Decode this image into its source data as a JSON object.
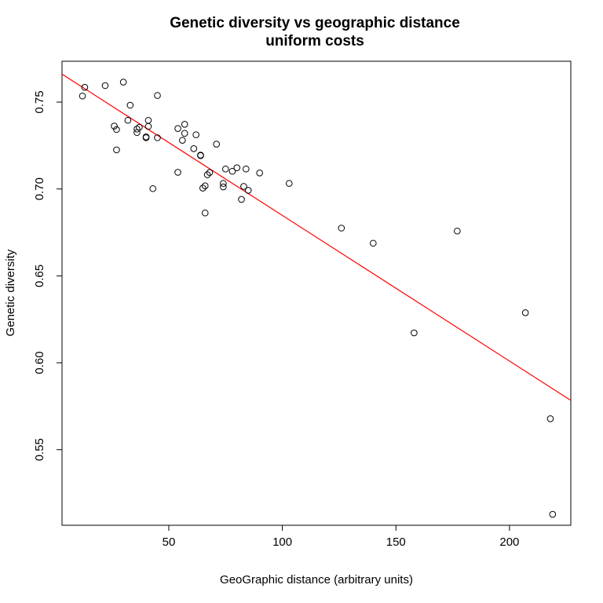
{
  "chart_data": {
    "type": "scatter",
    "title": "Genetic diversity vs geographic distance",
    "subtitle": "uniform costs",
    "xlabel": "GeoGraphic distance (arbitrary units)",
    "ylabel": "Genetic diversity",
    "xlim": [
      3,
      227
    ],
    "ylim": [
      0.5065,
      0.7735
    ],
    "x_ticks": [
      50,
      100,
      150,
      200
    ],
    "y_ticks": [
      0.55,
      0.6,
      0.65,
      0.7,
      0.75
    ],
    "x_tick_labels": [
      "50",
      "100",
      "150",
      "200"
    ],
    "y_tick_labels": [
      "0.55",
      "0.60",
      "0.65",
      "0.70",
      "0.75"
    ],
    "grid": false,
    "legend": "none",
    "colors": {
      "points": "#000000",
      "fit_line": "#ff0000"
    },
    "fit_line": {
      "intercept": 0.7686,
      "slope": -0.000838
    },
    "points": [
      {
        "x": 12,
        "y": 0.7535
      },
      {
        "x": 13,
        "y": 0.7585
      },
      {
        "x": 22,
        "y": 0.7595
      },
      {
        "x": 30,
        "y": 0.7615
      },
      {
        "x": 26,
        "y": 0.7362
      },
      {
        "x": 27,
        "y": 0.7342
      },
      {
        "x": 27,
        "y": 0.7225
      },
      {
        "x": 32,
        "y": 0.7395
      },
      {
        "x": 33,
        "y": 0.7482
      },
      {
        "x": 36,
        "y": 0.7345
      },
      {
        "x": 36,
        "y": 0.7325
      },
      {
        "x": 37,
        "y": 0.7355
      },
      {
        "x": 40,
        "y": 0.73
      },
      {
        "x": 40,
        "y": 0.7295
      },
      {
        "x": 41,
        "y": 0.7395
      },
      {
        "x": 41,
        "y": 0.736
      },
      {
        "x": 43,
        "y": 0.7002
      },
      {
        "x": 45,
        "y": 0.7538
      },
      {
        "x": 45,
        "y": 0.7295
      },
      {
        "x": 54,
        "y": 0.7348
      },
      {
        "x": 54,
        "y": 0.7096
      },
      {
        "x": 56,
        "y": 0.728
      },
      {
        "x": 57,
        "y": 0.7372
      },
      {
        "x": 57,
        "y": 0.732
      },
      {
        "x": 61,
        "y": 0.7232
      },
      {
        "x": 62,
        "y": 0.7312
      },
      {
        "x": 64,
        "y": 0.7195
      },
      {
        "x": 64,
        "y": 0.7192
      },
      {
        "x": 65,
        "y": 0.7005
      },
      {
        "x": 66,
        "y": 0.7018
      },
      {
        "x": 66,
        "y": 0.6862
      },
      {
        "x": 67,
        "y": 0.7082
      },
      {
        "x": 68,
        "y": 0.7095
      },
      {
        "x": 71,
        "y": 0.7258
      },
      {
        "x": 74,
        "y": 0.7032
      },
      {
        "x": 74,
        "y": 0.7012
      },
      {
        "x": 75,
        "y": 0.7115
      },
      {
        "x": 78,
        "y": 0.7102
      },
      {
        "x": 80,
        "y": 0.7122
      },
      {
        "x": 82,
        "y": 0.694
      },
      {
        "x": 83,
        "y": 0.7015
      },
      {
        "x": 84,
        "y": 0.7115
      },
      {
        "x": 85,
        "y": 0.6992
      },
      {
        "x": 90,
        "y": 0.7092
      },
      {
        "x": 103,
        "y": 0.7032
      },
      {
        "x": 126,
        "y": 0.6775
      },
      {
        "x": 140,
        "y": 0.6688
      },
      {
        "x": 158,
        "y": 0.6172
      },
      {
        "x": 177,
        "y": 0.6758
      },
      {
        "x": 207,
        "y": 0.6288
      },
      {
        "x": 218,
        "y": 0.5678
      },
      {
        "x": 219,
        "y": 0.5128
      }
    ]
  }
}
